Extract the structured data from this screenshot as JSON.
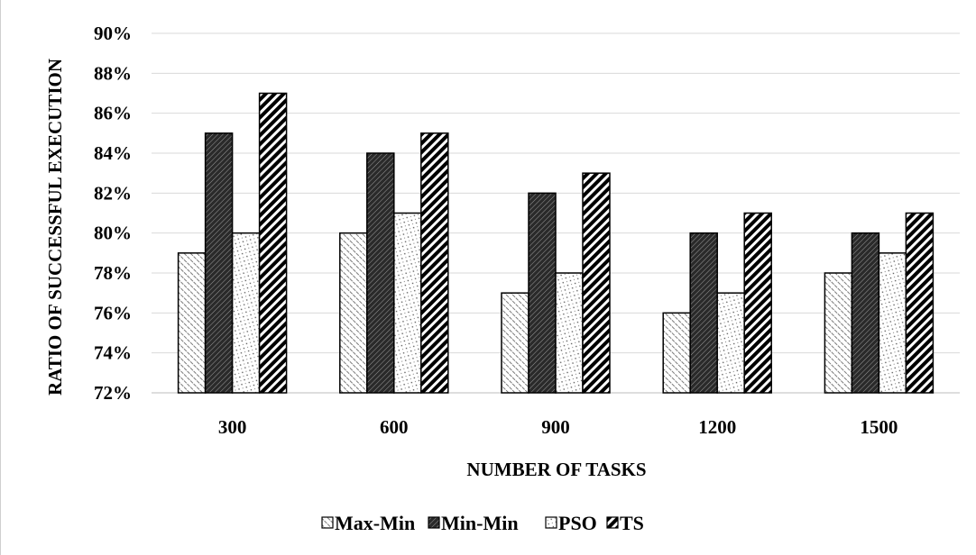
{
  "chart_data": {
    "type": "bar",
    "title": "",
    "xlabel": "NUMBER OF TASKS",
    "ylabel": "RATIO OF SUCCESSFUL EXECUTION",
    "categories": [
      "300",
      "600",
      "900",
      "1200",
      "1500"
    ],
    "ylim": [
      72,
      90
    ],
    "yticks": [
      "72%",
      "74%",
      "76%",
      "78%",
      "80%",
      "82%",
      "84%",
      "86%",
      "88%",
      "90%"
    ],
    "ytick_values": [
      72,
      74,
      76,
      78,
      80,
      82,
      84,
      86,
      88,
      90
    ],
    "grid": true,
    "legend_position": "bottom",
    "series": [
      {
        "name": "Max-Min",
        "values": [
          79,
          80,
          77,
          76,
          78
        ],
        "pattern": "dense-diagonal-dots",
        "color": "#c8c8c8"
      },
      {
        "name": "Min-Min",
        "values": [
          85,
          84,
          82,
          80,
          80
        ],
        "pattern": "dark-diagonal",
        "color": "#3c3c3c"
      },
      {
        "name": "PSO",
        "values": [
          80,
          81,
          78,
          77,
          79
        ],
        "pattern": "light-dots",
        "color": "#f2f2f2"
      },
      {
        "name": "TS",
        "values": [
          87,
          85,
          83,
          81,
          81
        ],
        "pattern": "wide-diagonal-stripes",
        "color": "#000000"
      }
    ]
  }
}
